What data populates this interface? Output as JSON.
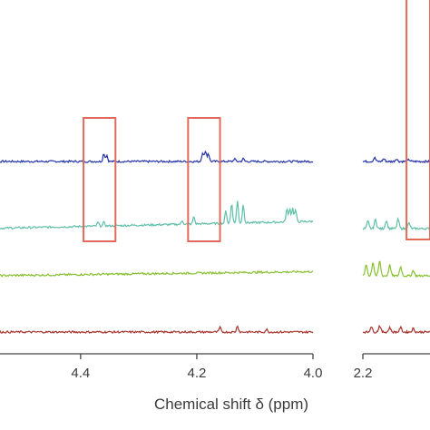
{
  "chart_data": {
    "type": "line",
    "xlabel": "Chemical shift δ (ppm)",
    "x_reversed": true,
    "panels": [
      {
        "name": "left",
        "xlim": [
          4.57,
          4.0
        ],
        "ticks": [
          4.4,
          4.2,
          4.0
        ],
        "tick_labels": [
          "4.4",
          "4.2",
          "4.0"
        ],
        "highlight_boxes": [
          {
            "x_from": 4.395,
            "x_to": 4.34
          },
          {
            "x_from": 4.215,
            "x_to": 4.16
          }
        ]
      },
      {
        "name": "right",
        "xlim": [
          2.2,
          2.12
        ],
        "ticks": [
          2.2
        ],
        "tick_labels": [
          "2.2"
        ],
        "highlight_boxes": [
          {
            "x_from": 2.148,
            "x_to": 2.12
          }
        ]
      }
    ],
    "series": [
      {
        "color": "#2233aa",
        "left_peaks": [
          [
            4.36,
            9
          ],
          [
            4.355,
            7
          ],
          [
            4.19,
            10
          ],
          [
            4.185,
            12
          ],
          [
            4.18,
            9
          ],
          [
            4.135,
            3
          ],
          [
            4.12,
            3
          ]
        ],
        "right_peaks": [
          [
            2.186,
            4
          ],
          [
            2.175,
            3
          ],
          [
            2.16,
            3
          ],
          [
            2.145,
            2
          ]
        ]
      },
      {
        "color": "#5fbfa8",
        "left_peaks": [
          [
            4.37,
            4
          ],
          [
            4.36,
            4
          ],
          [
            4.225,
            4
          ],
          [
            4.205,
            8
          ],
          [
            4.15,
            14
          ],
          [
            4.14,
            22
          ],
          [
            4.13,
            24
          ],
          [
            4.12,
            20
          ],
          [
            4.045,
            14
          ],
          [
            4.04,
            15
          ],
          [
            4.035,
            15
          ],
          [
            4.03,
            13
          ]
        ],
        "right_peaks": [
          [
            2.194,
            8
          ],
          [
            2.185,
            10
          ],
          [
            2.172,
            9
          ],
          [
            2.158,
            10
          ],
          [
            2.145,
            6
          ]
        ]
      },
      {
        "color": "#88c032",
        "left_peaks": [],
        "right_peaks": [
          [
            2.196,
            12
          ],
          [
            2.188,
            15
          ],
          [
            2.18,
            16
          ],
          [
            2.168,
            12
          ],
          [
            2.155,
            10
          ],
          [
            2.14,
            6
          ]
        ]
      },
      {
        "color": "#a8322c",
        "left_peaks": [
          [
            4.16,
            5
          ],
          [
            4.13,
            7
          ],
          [
            4.08,
            3
          ]
        ],
        "right_peaks": [
          [
            2.19,
            6
          ],
          [
            2.18,
            7
          ],
          [
            2.168,
            5
          ],
          [
            2.155,
            5
          ],
          [
            2.14,
            4
          ]
        ]
      }
    ],
    "box_color": "#e26a5a",
    "grid": false,
    "legend": "none"
  }
}
